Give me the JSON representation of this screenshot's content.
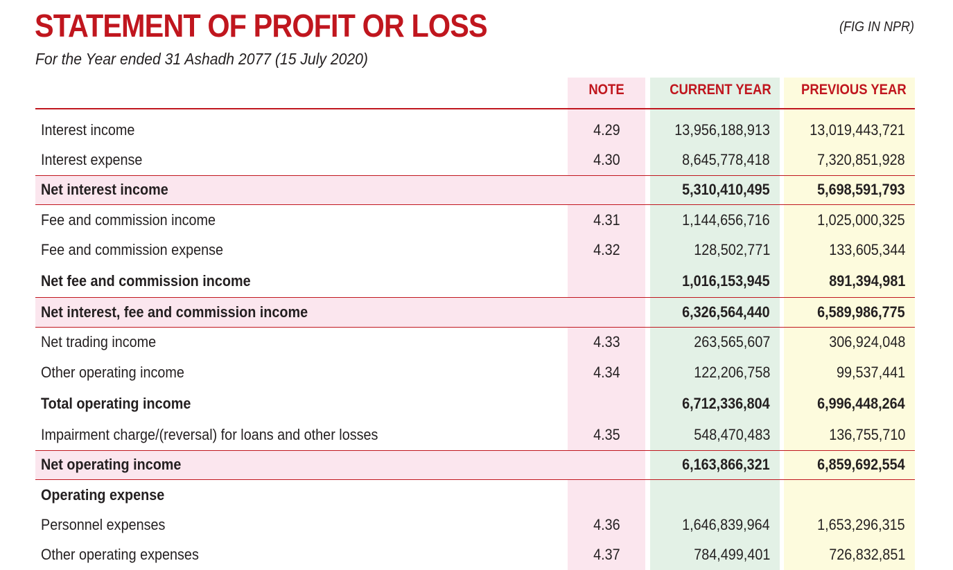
{
  "header": {
    "title": "STATEMENT OF PROFIT OR LOSS",
    "subtitle": "For the Year ended 31 Ashadh 2077 (15 July 2020)",
    "currency_note": "(FIG IN NPR)"
  },
  "columns": {
    "note": "NOTE",
    "current_year": "CURRENT YEAR",
    "previous_year": "PREVIOUS YEAR"
  },
  "rows": [
    {
      "label": "Interest income",
      "note": "4.29",
      "current": "13,956,188,913",
      "previous": "13,019,443,721",
      "style": "normal"
    },
    {
      "label": "Interest expense",
      "note": "4.30",
      "current": "8,645,778,418",
      "previous": "7,320,851,928",
      "style": "normal"
    },
    {
      "label": "Net interest income",
      "note": "",
      "current": "5,310,410,495",
      "previous": "5,698,591,793",
      "style": "bold"
    },
    {
      "label": "Fee and commission income",
      "note": "4.31",
      "current": "1,144,656,716",
      "previous": "1,025,000,325",
      "style": "normal"
    },
    {
      "label": "Fee and commission expense",
      "note": "4.32",
      "current": "128,502,771",
      "previous": "133,605,344",
      "style": "normal"
    },
    {
      "label": "Net fee and commission income",
      "note": "",
      "current": "1,016,153,945",
      "previous": "891,394,981",
      "style": "bold-plain"
    },
    {
      "label": "Net interest, fee and commission income",
      "note": "",
      "current": "6,326,564,440",
      "previous": "6,589,986,775",
      "style": "bold"
    },
    {
      "label": "Net trading income",
      "note": "4.33",
      "current": "263,565,607",
      "previous": "306,924,048",
      "style": "normal"
    },
    {
      "label": "Other operating income",
      "note": "4.34",
      "current": "122,206,758",
      "previous": "99,537,441",
      "style": "normal"
    },
    {
      "label": "Total operating income",
      "note": "",
      "current": "6,712,336,804",
      "previous": "6,996,448,264",
      "style": "bold-plain"
    },
    {
      "label": "Impairment charge/(reversal) for loans and other losses",
      "note": "4.35",
      "current": "548,470,483",
      "previous": "136,755,710",
      "style": "normal"
    },
    {
      "label": "Net operating income",
      "note": "",
      "current": "6,163,866,321",
      "previous": "6,859,692,554",
      "style": "bold"
    },
    {
      "label": "Operating expense",
      "note": "",
      "current": "",
      "previous": "",
      "style": "heading"
    },
    {
      "label": "Personnel expenses",
      "note": "4.36",
      "current": "1,646,839,964",
      "previous": "1,653,296,315",
      "style": "normal"
    },
    {
      "label": "Other operating expenses",
      "note": "4.37",
      "current": "784,499,401",
      "previous": "726,832,851",
      "style": "normal"
    }
  ]
}
